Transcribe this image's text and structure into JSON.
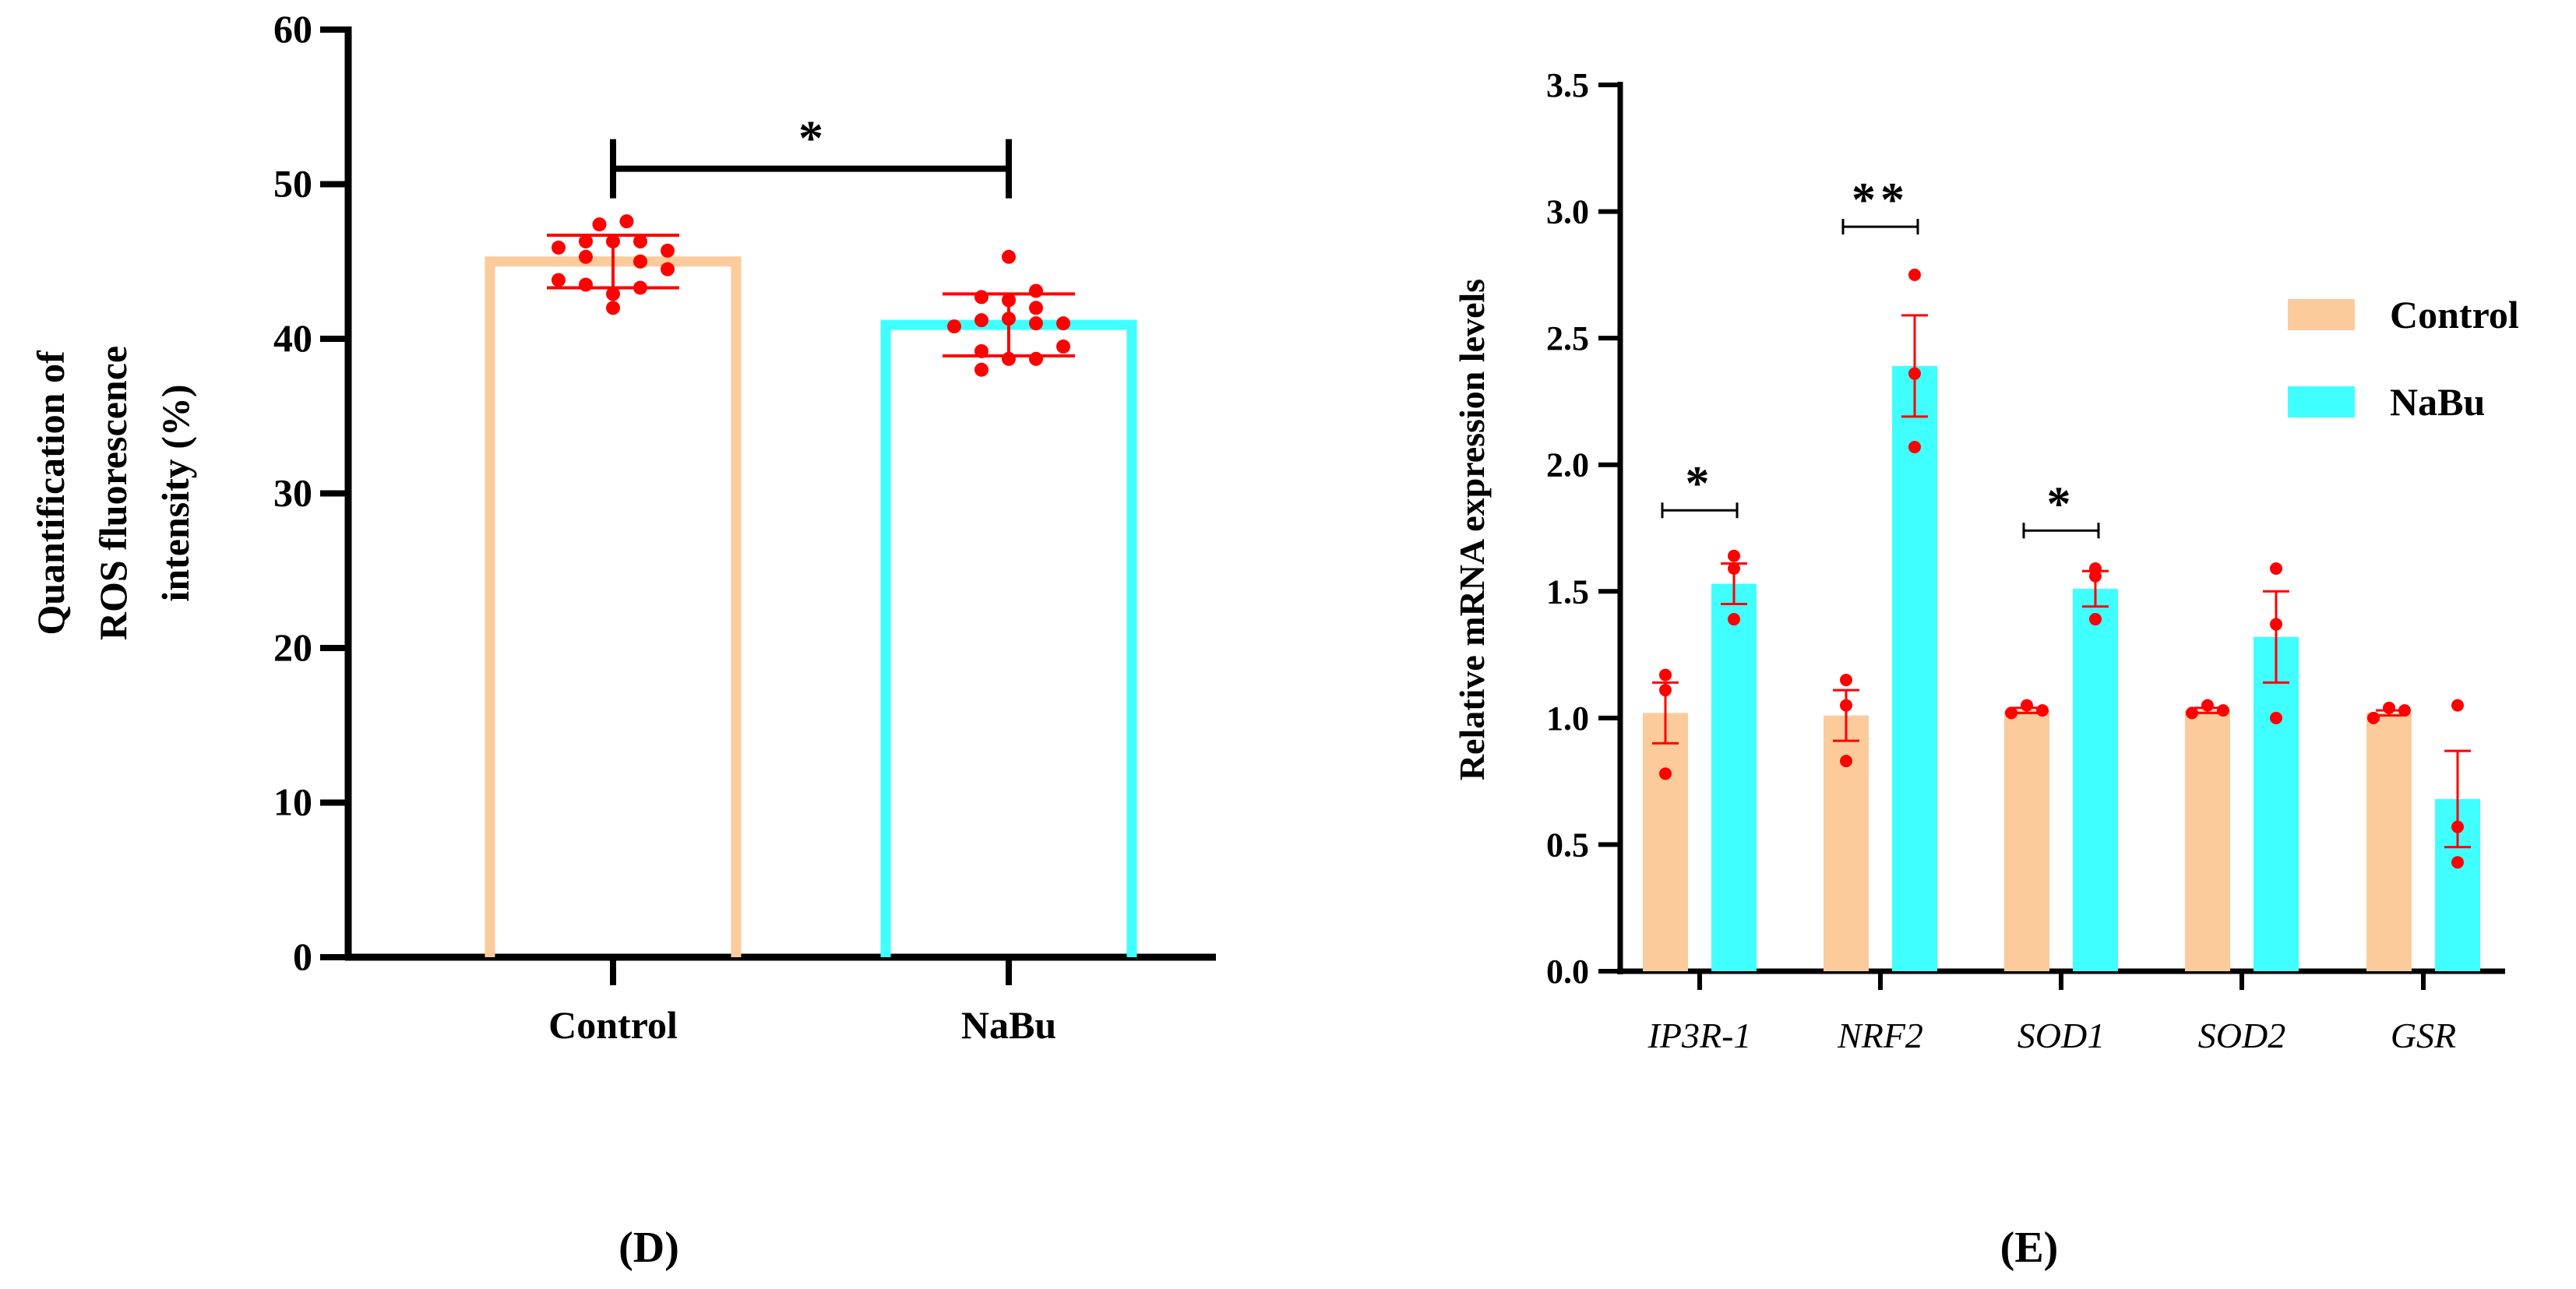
{
  "colors": {
    "control": "#FBCB9B",
    "control_stroke": "#F7C89A",
    "nabu": "#3FFFFF",
    "points": "#FF0000",
    "axis": "#000000"
  },
  "chart_data": [
    {
      "panel_label": "(D)",
      "type": "bar",
      "ylabel_lines": [
        "Quantification of",
        "ROS fluorescence",
        "intensity (%)"
      ],
      "xlabel": "",
      "ylim": [
        0,
        60
      ],
      "yticks": [
        "0",
        "10",
        "20",
        "30",
        "40",
        "50",
        "60"
      ],
      "categories": [
        "Control",
        "NaBu"
      ],
      "bar_style": "outline",
      "values": [
        45.0,
        40.9
      ],
      "error_sd": [
        1.7,
        2.0
      ],
      "points": [
        [
          45.9,
          46.3,
          47.4,
          47.6,
          46.3,
          46.3,
          45.7,
          45.3,
          45.0,
          44.5,
          43.8,
          43.5,
          43.3,
          42.9,
          42.0
        ],
        [
          45.3,
          42.7,
          43.1,
          42.5,
          42.0,
          40.8,
          41.2,
          41.3,
          41.0,
          41.0,
          39.5,
          39.2,
          38.7,
          38.7,
          38.0
        ]
      ],
      "significance": [
        {
          "from": "Control",
          "to": "NaBu",
          "label": "*",
          "y": 51
        }
      ]
    },
    {
      "panel_label": "(E)",
      "type": "bar",
      "ylabel": "Relative mRNA expression levels",
      "xlabel": "",
      "ylim": [
        0,
        3.5
      ],
      "yticks": [
        "0.0",
        "0.5",
        "1.0",
        "1.5",
        "2.0",
        "2.5",
        "3.0",
        "3.5"
      ],
      "categories": [
        "IP3R-1",
        "NRF2",
        "SOD1",
        "SOD2",
        "GSR"
      ],
      "legend": {
        "position": "right",
        "entries": [
          "Control",
          "NaBu"
        ]
      },
      "series": [
        {
          "name": "Control",
          "values": [
            1.02,
            1.01,
            1.03,
            1.03,
            1.02
          ],
          "sem": [
            0.12,
            0.1,
            0.01,
            0.01,
            0.01
          ],
          "points": [
            [
              1.17,
              1.11,
              0.78
            ],
            [
              1.15,
              1.05,
              0.83
            ],
            [
              1.02,
              1.05,
              1.03
            ],
            [
              1.02,
              1.05,
              1.03
            ],
            [
              1.0,
              1.04,
              1.03
            ]
          ]
        },
        {
          "name": "NaBu",
          "values": [
            1.53,
            2.39,
            1.51,
            1.32,
            0.68
          ],
          "sem": [
            0.08,
            0.2,
            0.07,
            0.18,
            0.19
          ],
          "points": [
            [
              1.64,
              1.59,
              1.39
            ],
            [
              2.75,
              2.36,
              2.07
            ],
            [
              1.59,
              1.56,
              1.39
            ],
            [
              1.59,
              1.37,
              1.0
            ],
            [
              1.05,
              0.57,
              0.43
            ]
          ]
        }
      ],
      "significance": [
        {
          "category": "IP3R-1",
          "label": "*",
          "y": 1.82
        },
        {
          "category": "NRF2",
          "label": "**",
          "y": 2.94
        },
        {
          "category": "SOD1",
          "label": "*",
          "y": 1.74
        }
      ]
    }
  ]
}
